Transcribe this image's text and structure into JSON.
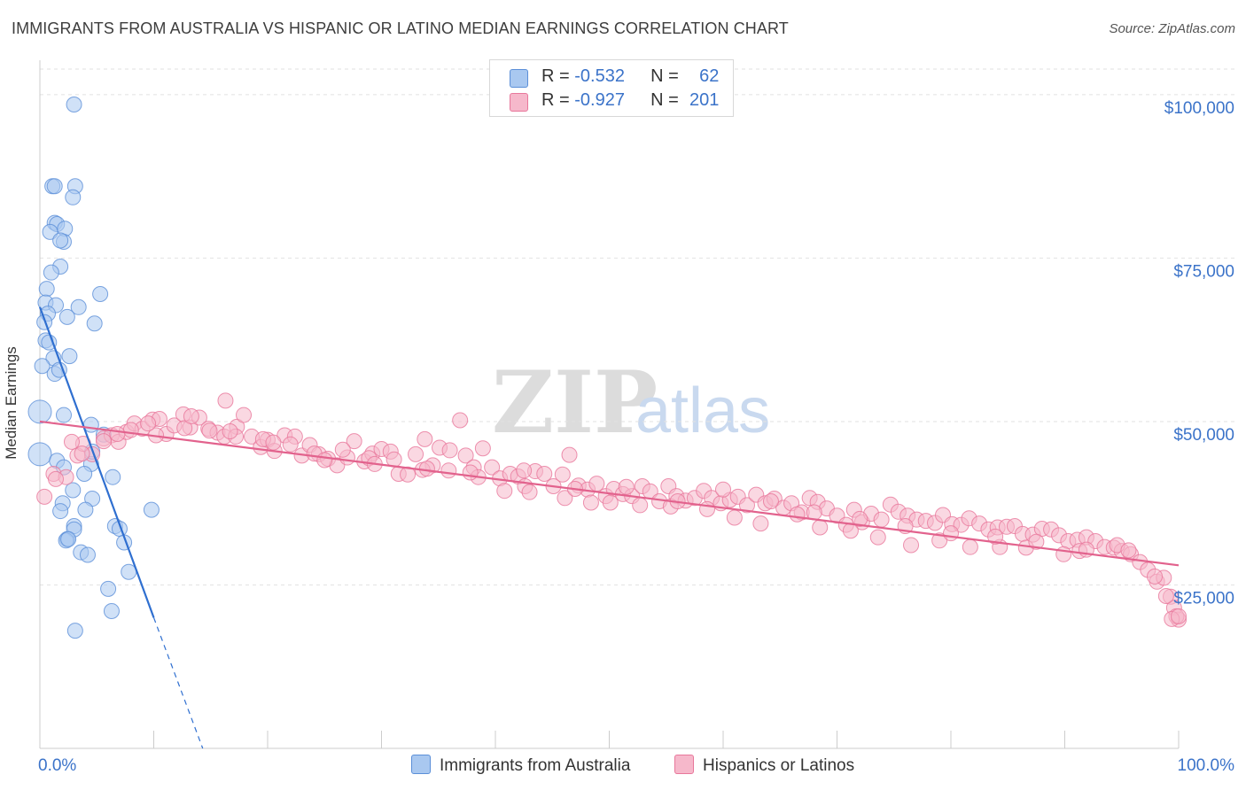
{
  "title": "IMMIGRANTS FROM AUSTRALIA VS HISPANIC OR LATINO MEDIAN EARNINGS CORRELATION CHART",
  "source": "Source: ZipAtlas.com",
  "watermark": {
    "zip": "ZIP",
    "atlas": "atlas"
  },
  "legend_top": [
    {
      "r_label": "R = ",
      "r_value": "-0.532",
      "n_label": "N = ",
      "n_value": "62",
      "color": "#a9c8f0"
    },
    {
      "r_label": "R = ",
      "r_value": "-0.927",
      "n_label": "N = ",
      "n_value": "201",
      "color": "#f6b8cb"
    }
  ],
  "chart_data": {
    "type": "scatter",
    "title": "IMMIGRANTS FROM AUSTRALIA VS HISPANIC OR LATINO MEDIAN EARNINGS CORRELATION CHART",
    "xlabel": "",
    "ylabel": "Median Earnings",
    "xlim": [
      0,
      100
    ],
    "ylim": [
      0,
      105000
    ],
    "x_tick_labels": [
      "0.0%",
      "100.0%"
    ],
    "y_ticks": [
      25000,
      50000,
      75000,
      100000
    ],
    "y_tick_labels": [
      "$25,000",
      "$50,000",
      "$75,000",
      "$100,000"
    ],
    "grid": true,
    "legend": "bottom-center",
    "series": [
      {
        "name": "Immigrants from Australia",
        "color": "#5b8fd8",
        "fill": "#a9c8f0",
        "trend": {
          "x0": 0,
          "y0": 67500,
          "x1": 10,
          "y1": 20000,
          "dashed_to_x": 14.3,
          "dashed_to_y": 0
        },
        "points": [
          [
            3.0,
            98500
          ],
          [
            1.1,
            86000
          ],
          [
            1.3,
            86000
          ],
          [
            3.1,
            86000
          ],
          [
            2.9,
            84300
          ],
          [
            1.3,
            80400
          ],
          [
            1.5,
            80200
          ],
          [
            0.9,
            79000
          ],
          [
            2.2,
            79500
          ],
          [
            2.1,
            77500
          ],
          [
            1.8,
            77700
          ],
          [
            1.8,
            73700
          ],
          [
            1.0,
            72800
          ],
          [
            0.6,
            70300
          ],
          [
            0.5,
            68200
          ],
          [
            1.4,
            67800
          ],
          [
            3.4,
            67500
          ],
          [
            5.3,
            69500
          ],
          [
            0.7,
            66500
          ],
          [
            0.4,
            65200
          ],
          [
            2.4,
            66000
          ],
          [
            4.8,
            65000
          ],
          [
            0.5,
            62400
          ],
          [
            0.8,
            62100
          ],
          [
            1.2,
            59700
          ],
          [
            2.6,
            60000
          ],
          [
            0.2,
            58500
          ],
          [
            1.3,
            57300
          ],
          [
            1.7,
            57900
          ],
          [
            0.0,
            51500
          ],
          [
            2.1,
            51000
          ],
          [
            0.0,
            45000
          ],
          [
            4.5,
            49500
          ],
          [
            1.5,
            44000
          ],
          [
            2.1,
            43000
          ],
          [
            4.5,
            43500
          ],
          [
            5.6,
            48000
          ],
          [
            4.6,
            45400
          ],
          [
            2.9,
            39500
          ],
          [
            3.9,
            42000
          ],
          [
            6.4,
            41500
          ],
          [
            2.0,
            37500
          ],
          [
            4.6,
            38200
          ],
          [
            4.0,
            36500
          ],
          [
            1.8,
            36300
          ],
          [
            3.0,
            34000
          ],
          [
            6.6,
            34000
          ],
          [
            7.0,
            33600
          ],
          [
            3.0,
            33500
          ],
          [
            2.4,
            32000
          ],
          [
            2.3,
            31800
          ],
          [
            7.4,
            31500
          ],
          [
            3.6,
            30000
          ],
          [
            4.2,
            29600
          ],
          [
            7.8,
            27000
          ],
          [
            9.8,
            36500
          ],
          [
            6.0,
            24400
          ],
          [
            6.3,
            21000
          ],
          [
            3.1,
            18000
          ],
          [
            2.5,
            32000
          ]
        ]
      },
      {
        "name": "Hispanics or Latinos",
        "color": "#e8779b",
        "fill": "#f6b8cb",
        "trend": {
          "x0": 0,
          "y0": 50000,
          "x1": 100,
          "y1": 28000
        },
        "points": [
          [
            0.4,
            38500
          ],
          [
            1.2,
            42000
          ],
          [
            2.3,
            41500
          ],
          [
            3.3,
            44800
          ],
          [
            3.8,
            46600
          ],
          [
            4.6,
            45000
          ],
          [
            5.6,
            47400
          ],
          [
            6.3,
            47900
          ],
          [
            6.9,
            46900
          ],
          [
            7.6,
            48400
          ],
          [
            8.3,
            49700
          ],
          [
            9.0,
            48900
          ],
          [
            9.9,
            50300
          ],
          [
            10.5,
            50400
          ],
          [
            11.1,
            48100
          ],
          [
            11.8,
            49400
          ],
          [
            12.6,
            51100
          ],
          [
            13.2,
            49100
          ],
          [
            14.0,
            50600
          ],
          [
            14.8,
            48900
          ],
          [
            15.6,
            48300
          ],
          [
            16.2,
            47700
          ],
          [
            16.3,
            53200
          ],
          [
            17.3,
            49200
          ],
          [
            17.9,
            51000
          ],
          [
            18.6,
            47700
          ],
          [
            19.4,
            46100
          ],
          [
            20.0,
            47200
          ],
          [
            20.6,
            45500
          ],
          [
            21.5,
            47900
          ],
          [
            22.4,
            47700
          ],
          [
            23.0,
            44800
          ],
          [
            23.7,
            46400
          ],
          [
            24.5,
            45000
          ],
          [
            25.3,
            44300
          ],
          [
            26.1,
            43300
          ],
          [
            27.0,
            44500
          ],
          [
            27.6,
            47000
          ],
          [
            28.5,
            43900
          ],
          [
            29.2,
            45100
          ],
          [
            30.0,
            45800
          ],
          [
            30.8,
            45400
          ],
          [
            31.5,
            42000
          ],
          [
            32.3,
            41900
          ],
          [
            33.0,
            45000
          ],
          [
            33.8,
            47300
          ],
          [
            34.5,
            43300
          ],
          [
            35.1,
            46000
          ],
          [
            36.0,
            45600
          ],
          [
            36.9,
            50200
          ],
          [
            37.4,
            44800
          ],
          [
            38.1,
            43000
          ],
          [
            38.9,
            45900
          ],
          [
            39.7,
            43000
          ],
          [
            40.4,
            41300
          ],
          [
            41.3,
            42000
          ],
          [
            42.0,
            41600
          ],
          [
            42.6,
            40100
          ],
          [
            43.5,
            42400
          ],
          [
            44.3,
            42000
          ],
          [
            45.1,
            40100
          ],
          [
            45.9,
            41900
          ],
          [
            46.5,
            44900
          ],
          [
            47.3,
            40200
          ],
          [
            48.1,
            39600
          ],
          [
            48.9,
            40500
          ],
          [
            49.7,
            38600
          ],
          [
            50.4,
            39700
          ],
          [
            51.2,
            38900
          ],
          [
            52.0,
            38600
          ],
          [
            52.9,
            40100
          ],
          [
            53.6,
            39300
          ],
          [
            54.4,
            37800
          ],
          [
            55.2,
            40100
          ],
          [
            55.9,
            38600
          ],
          [
            56.7,
            37900
          ],
          [
            57.5,
            38300
          ],
          [
            58.3,
            39400
          ],
          [
            59.0,
            38300
          ],
          [
            59.8,
            37500
          ],
          [
            60.6,
            38000
          ],
          [
            61.3,
            38500
          ],
          [
            62.1,
            37200
          ],
          [
            62.9,
            38800
          ],
          [
            63.7,
            37500
          ],
          [
            64.5,
            38200
          ],
          [
            65.3,
            36800
          ],
          [
            66.0,
            37500
          ],
          [
            66.9,
            36100
          ],
          [
            67.6,
            38300
          ],
          [
            68.3,
            37700
          ],
          [
            69.1,
            36700
          ],
          [
            70.0,
            35600
          ],
          [
            70.8,
            34200
          ],
          [
            71.5,
            36500
          ],
          [
            72.2,
            34600
          ],
          [
            73.0,
            35900
          ],
          [
            73.9,
            35000
          ],
          [
            74.7,
            37300
          ],
          [
            75.4,
            36200
          ],
          [
            76.2,
            35600
          ],
          [
            77.0,
            35000
          ],
          [
            77.8,
            34800
          ],
          [
            78.6,
            34500
          ],
          [
            79.3,
            35700
          ],
          [
            80.1,
            34300
          ],
          [
            80.9,
            34200
          ],
          [
            81.6,
            35200
          ],
          [
            82.5,
            34400
          ],
          [
            83.3,
            33500
          ],
          [
            84.1,
            33800
          ],
          [
            84.9,
            33900
          ],
          [
            85.6,
            34000
          ],
          [
            86.3,
            32800
          ],
          [
            87.2,
            32700
          ],
          [
            88.0,
            33600
          ],
          [
            88.8,
            33500
          ],
          [
            89.5,
            32600
          ],
          [
            90.3,
            31700
          ],
          [
            91.1,
            31900
          ],
          [
            91.9,
            32300
          ],
          [
            92.7,
            31700
          ],
          [
            93.5,
            30800
          ],
          [
            94.3,
            30700
          ],
          [
            95.0,
            30200
          ],
          [
            95.8,
            29700
          ],
          [
            96.6,
            28500
          ],
          [
            97.3,
            27300
          ],
          [
            98.1,
            25500
          ],
          [
            98.7,
            26100
          ],
          [
            99.3,
            23200
          ],
          [
            99.6,
            21500
          ],
          [
            100.0,
            19700
          ],
          [
            99.8,
            20200
          ],
          [
            94.6,
            31100
          ],
          [
            91.3,
            30200
          ],
          [
            89.9,
            29700
          ],
          [
            86.6,
            30700
          ],
          [
            84.3,
            30800
          ],
          [
            81.7,
            30800
          ],
          [
            79.0,
            31800
          ],
          [
            76.5,
            31100
          ],
          [
            73.6,
            32300
          ],
          [
            71.2,
            33300
          ],
          [
            68.5,
            33800
          ],
          [
            66.5,
            35800
          ],
          [
            63.3,
            34400
          ],
          [
            61.0,
            35300
          ],
          [
            58.6,
            36600
          ],
          [
            55.4,
            37000
          ],
          [
            52.7,
            37200
          ],
          [
            50.1,
            37600
          ],
          [
            48.4,
            37600
          ],
          [
            46.1,
            38300
          ],
          [
            43.0,
            39200
          ],
          [
            40.8,
            39400
          ],
          [
            38.5,
            41500
          ],
          [
            35.9,
            42500
          ],
          [
            33.6,
            42600
          ],
          [
            31.1,
            44200
          ],
          [
            28.9,
            44400
          ],
          [
            26.6,
            45700
          ],
          [
            24.1,
            45100
          ],
          [
            22.0,
            46500
          ],
          [
            19.6,
            47300
          ],
          [
            17.2,
            47700
          ],
          [
            14.9,
            48600
          ],
          [
            12.7,
            49000
          ],
          [
            10.2,
            47900
          ],
          [
            8.0,
            48700
          ],
          [
            5.6,
            47000
          ],
          [
            3.7,
            45100
          ],
          [
            1.4,
            41200
          ],
          [
            2.8,
            46900
          ],
          [
            6.8,
            48100
          ],
          [
            9.5,
            49700
          ],
          [
            13.3,
            50800
          ],
          [
            16.7,
            48500
          ],
          [
            20.5,
            46800
          ],
          [
            25.0,
            44100
          ],
          [
            29.4,
            43500
          ],
          [
            34.0,
            42800
          ],
          [
            37.8,
            42200
          ],
          [
            42.5,
            42500
          ],
          [
            47.0,
            39700
          ],
          [
            51.5,
            40000
          ],
          [
            56.0,
            37800
          ],
          [
            60.0,
            39600
          ],
          [
            64.2,
            37800
          ],
          [
            68.0,
            36100
          ],
          [
            72.0,
            35100
          ],
          [
            76.0,
            34000
          ],
          [
            80.0,
            32900
          ],
          [
            83.9,
            32400
          ],
          [
            87.5,
            31600
          ],
          [
            91.9,
            30400
          ],
          [
            95.6,
            30300
          ],
          [
            97.9,
            26300
          ],
          [
            98.9,
            23300
          ],
          [
            99.4,
            19800
          ],
          [
            100.0,
            20200
          ]
        ]
      }
    ]
  },
  "legend_bottom": [
    {
      "label": "Immigrants from Australia",
      "color": "#a9c8f0",
      "border": "#5b8fd8"
    },
    {
      "label": "Hispanics or Latinos",
      "color": "#f6b8cb",
      "border": "#e8779b"
    }
  ]
}
